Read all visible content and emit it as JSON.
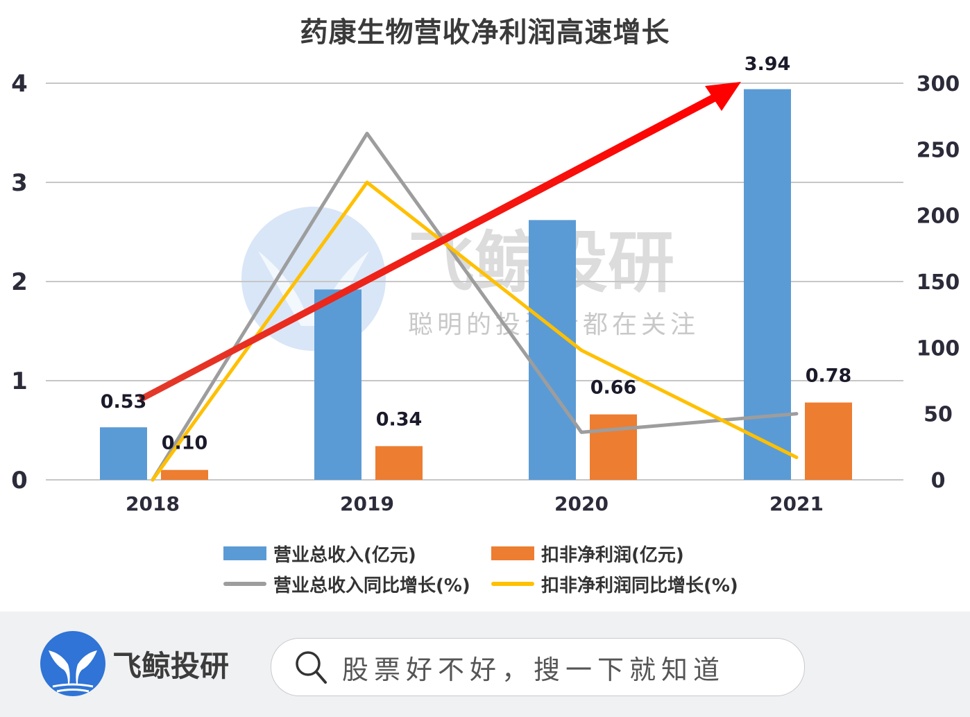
{
  "title": "药康生物营收净利润高速增长",
  "chart_data": {
    "type": "bar",
    "title": "药康生物营收净利润高速增长",
    "categories": [
      "2018",
      "2019",
      "2020",
      "2021"
    ],
    "series": [
      {
        "name": "营业总收入(亿元)",
        "type": "bar",
        "axis": "left",
        "color": "#5b9bd5",
        "values": [
          0.53,
          1.92,
          2.62,
          3.94
        ],
        "labels": [
          "0.53",
          "",
          "",
          "3.94"
        ]
      },
      {
        "name": "扣非净利润(亿元)",
        "type": "bar",
        "axis": "left",
        "color": "#ed7d31",
        "values": [
          0.1,
          0.34,
          0.66,
          0.78
        ],
        "labels": [
          "0.10",
          "0.34",
          "0.66",
          "0.78"
        ]
      },
      {
        "name": "营业总收入同比增长(%)",
        "type": "line",
        "axis": "right",
        "color": "#9d9d9d",
        "values": [
          0,
          262,
          36,
          50
        ]
      },
      {
        "name": "扣非净利润同比增长(%)",
        "type": "line",
        "axis": "right",
        "color": "#ffc000",
        "values": [
          0,
          225,
          98,
          17
        ]
      }
    ],
    "left_axis": {
      "ticks": [
        "0",
        "1",
        "2",
        "3",
        "4"
      ],
      "ylim": [
        0,
        4
      ]
    },
    "right_axis": {
      "ticks": [
        "0",
        "50",
        "100",
        "150",
        "200",
        "250",
        "300"
      ],
      "ylim": [
        0,
        300
      ]
    },
    "grid": true,
    "legend_position": "bottom",
    "annotation": {
      "type": "arrow",
      "color": "#ff0000",
      "from": "2018 revenue",
      "to": "2021 revenue"
    }
  },
  "watermark": {
    "brand": "飞鲸投研",
    "slogan": "聪明的投资者都在关注"
  },
  "legend": {
    "items": [
      {
        "label": "营业总收入(亿元)",
        "color": "#5b9bd5",
        "kind": "bar"
      },
      {
        "label": "扣非净利润(亿元)",
        "color": "#ed7d31",
        "kind": "bar"
      },
      {
        "label": "营业总收入同比增长(%)",
        "color": "#9d9d9d",
        "kind": "line"
      },
      {
        "label": "扣非净利润同比增长(%)",
        "color": "#ffc000",
        "kind": "line"
      }
    ]
  },
  "footer": {
    "brand_name": "飞鲸投研",
    "logo_icon": "whale-tail-icon",
    "search_icon": "search-icon",
    "search_placeholder": "股票好不好，搜一下就知道"
  }
}
